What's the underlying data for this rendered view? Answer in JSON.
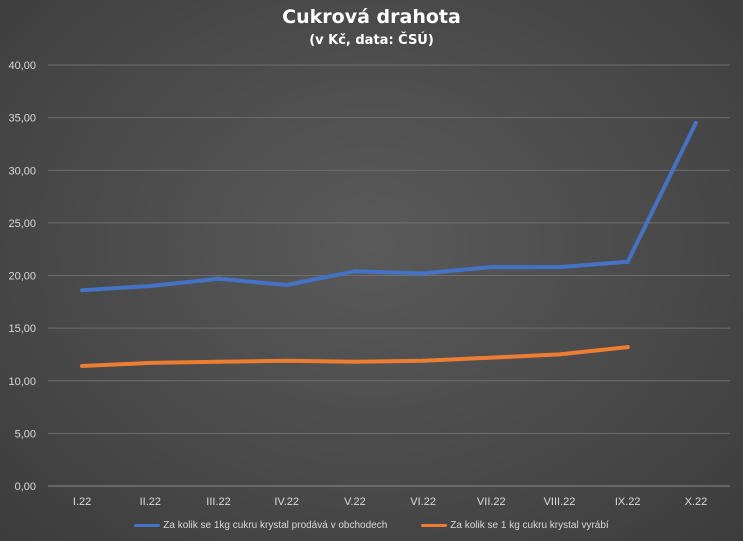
{
  "chart_data": {
    "type": "line",
    "title": "Cukrová drahota",
    "subtitle": "(v Kč, data: ČSÚ)",
    "categories": [
      "I.22",
      "II.22",
      "III.22",
      "IV.22",
      "V.22",
      "VI.22",
      "VII.22",
      "VIII.22",
      "IX.22",
      "X.22"
    ],
    "yticks": [
      "0,00",
      "5,00",
      "10,00",
      "15,00",
      "20,00",
      "25,00",
      "30,00",
      "35,00",
      "40,00"
    ],
    "ylim": [
      0,
      40
    ],
    "grid": true,
    "legend_position": "bottom",
    "series": [
      {
        "name": "Za kolik se 1kg cukru krystal prodává v obchodech",
        "color": "#4472c4",
        "values": [
          18.6,
          19.0,
          19.7,
          19.1,
          20.4,
          20.2,
          20.8,
          20.8,
          21.3,
          34.5
        ]
      },
      {
        "name": "Za kolik se 1 kg cukru krystal vyrábí",
        "color": "#ed7d31",
        "values": [
          11.4,
          11.7,
          11.8,
          11.9,
          11.8,
          11.9,
          12.2,
          12.5,
          13.2,
          null
        ]
      }
    ]
  }
}
